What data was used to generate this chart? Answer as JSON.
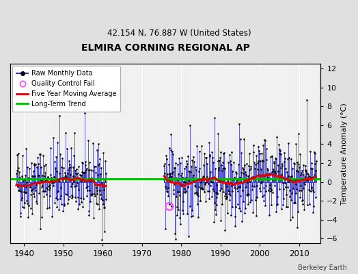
{
  "title": "ELMIRA CORNING REGIONAL AP",
  "subtitle": "42.154 N, 76.887 W (United States)",
  "ylabel_right": "Temperature Anomaly (°C)",
  "credit": "Berkeley Earth",
  "xlim": [
    1936.5,
    2015.5
  ],
  "ylim": [
    -6.5,
    12.5
  ],
  "yticks": [
    -6,
    -4,
    -2,
    0,
    2,
    4,
    6,
    8,
    10,
    12
  ],
  "xticks": [
    1940,
    1950,
    1960,
    1970,
    1980,
    1990,
    2000,
    2010
  ],
  "long_term_trend_y": 0.3,
  "long_term_trend_color": "#00bb00",
  "moving_avg_color": "#dd0000",
  "raw_line_color": "#3333cc",
  "raw_dot_color": "#000000",
  "qc_fail_color": "#ff44ff",
  "fig_bg_color": "#e0e0e0",
  "plot_bg_color": "#f0f0f0",
  "legend_bg": "#ffffff",
  "seed": 42,
  "period1_start": 1938.0,
  "period1_end": 1961.0,
  "period2_start": 1975.6,
  "period2_end": 2014.5,
  "qc_fail_x": 1977.0,
  "qc_fail_y": -2.6
}
